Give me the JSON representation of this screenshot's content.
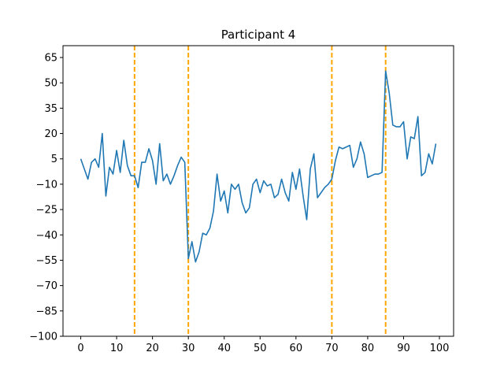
{
  "chart_data": {
    "type": "line",
    "title": "Participant 4",
    "xlabel": "",
    "ylabel": "",
    "xlim": [
      -4.95,
      103.95
    ],
    "ylim": [
      -100,
      72
    ],
    "xticks": [
      0,
      10,
      20,
      30,
      40,
      50,
      60,
      70,
      80,
      90,
      100
    ],
    "yticks": [
      -100,
      -85,
      -70,
      -55,
      -40,
      -25,
      -10,
      5,
      20,
      35,
      50,
      65
    ],
    "grid": false,
    "colors": {
      "series": "#1f77b4",
      "markers": "#ffa500"
    },
    "vertical_markers": [
      15,
      30,
      70,
      85
    ],
    "series": [
      {
        "x": [
          0,
          1,
          2,
          3,
          4,
          5,
          6,
          7,
          8,
          9,
          10,
          11,
          12,
          13,
          14,
          15,
          16,
          17,
          18,
          19,
          20,
          21,
          22,
          23,
          24,
          25,
          26,
          27,
          28,
          29,
          30,
          31,
          32,
          33,
          34,
          35,
          36,
          37,
          38,
          39,
          40,
          41,
          42,
          43,
          44,
          45,
          46,
          47,
          48,
          49,
          50,
          51,
          52,
          53,
          54,
          55,
          56,
          57,
          58,
          59,
          60,
          61,
          62,
          63,
          64,
          65,
          66,
          67,
          68,
          69,
          70,
          71,
          72,
          73,
          74,
          75,
          76,
          77,
          78,
          79,
          80,
          81,
          82,
          83,
          84,
          85,
          86,
          87,
          88,
          89,
          90,
          91,
          92,
          93,
          94,
          95,
          96,
          97,
          98,
          99
        ],
        "y": [
          5,
          -1,
          -7,
          3,
          5,
          0,
          20,
          -17,
          0,
          -4,
          10,
          -3,
          16,
          1,
          -5,
          -5,
          -12,
          3,
          3,
          11,
          4,
          -10,
          14,
          -8,
          -4,
          -10,
          -5,
          1,
          6,
          3,
          -54,
          -44,
          -56,
          -50,
          -39,
          -40,
          -36,
          -26,
          -4,
          -20,
          -14,
          -27,
          -10,
          -13,
          -10,
          -21,
          -27,
          -24,
          -10,
          -7,
          -15,
          -8,
          -11,
          -10,
          -18,
          -16,
          -7,
          -15,
          -20,
          -3,
          -13,
          -1,
          -17,
          -31,
          -1,
          8,
          -18,
          -15,
          -12,
          -10,
          -7,
          4,
          12,
          11,
          12,
          13,
          0,
          5,
          15,
          8,
          -6,
          -5,
          -4,
          -4,
          -3,
          57,
          44,
          25,
          24,
          24,
          27,
          5,
          18,
          17,
          30,
          -5,
          -3,
          8,
          2,
          14
        ]
      }
    ]
  }
}
